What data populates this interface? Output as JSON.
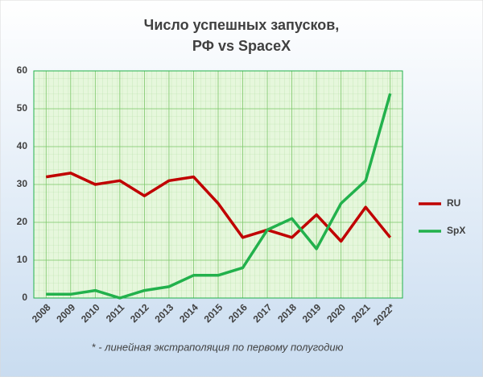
{
  "chart_data": {
    "type": "line",
    "title": [
      "Число успешных запусков,",
      "РФ vs SpaceX"
    ],
    "note": "* - линейная экстраполяция по первому полугодию",
    "categories": [
      "2008",
      "2009",
      "2010",
      "2011",
      "2012",
      "2013",
      "2014",
      "2015",
      "2016",
      "2017",
      "2018",
      "2019",
      "2020",
      "2021",
      "2022*"
    ],
    "series": [
      {
        "name": "RU",
        "color": "#c00000",
        "values": [
          32,
          33,
          30,
          31,
          27,
          31,
          32,
          25,
          16,
          18,
          16,
          22,
          15,
          24,
          16
        ]
      },
      {
        "name": "SpX",
        "color": "#22b14c",
        "values": [
          1,
          1,
          2,
          0,
          2,
          3,
          6,
          6,
          8,
          18,
          21,
          13,
          25,
          31,
          54
        ]
      }
    ],
    "ylim": [
      0,
      60
    ],
    "yticks": [
      0,
      10,
      20,
      30,
      40,
      50,
      60
    ],
    "grid": true,
    "legend": "right"
  }
}
